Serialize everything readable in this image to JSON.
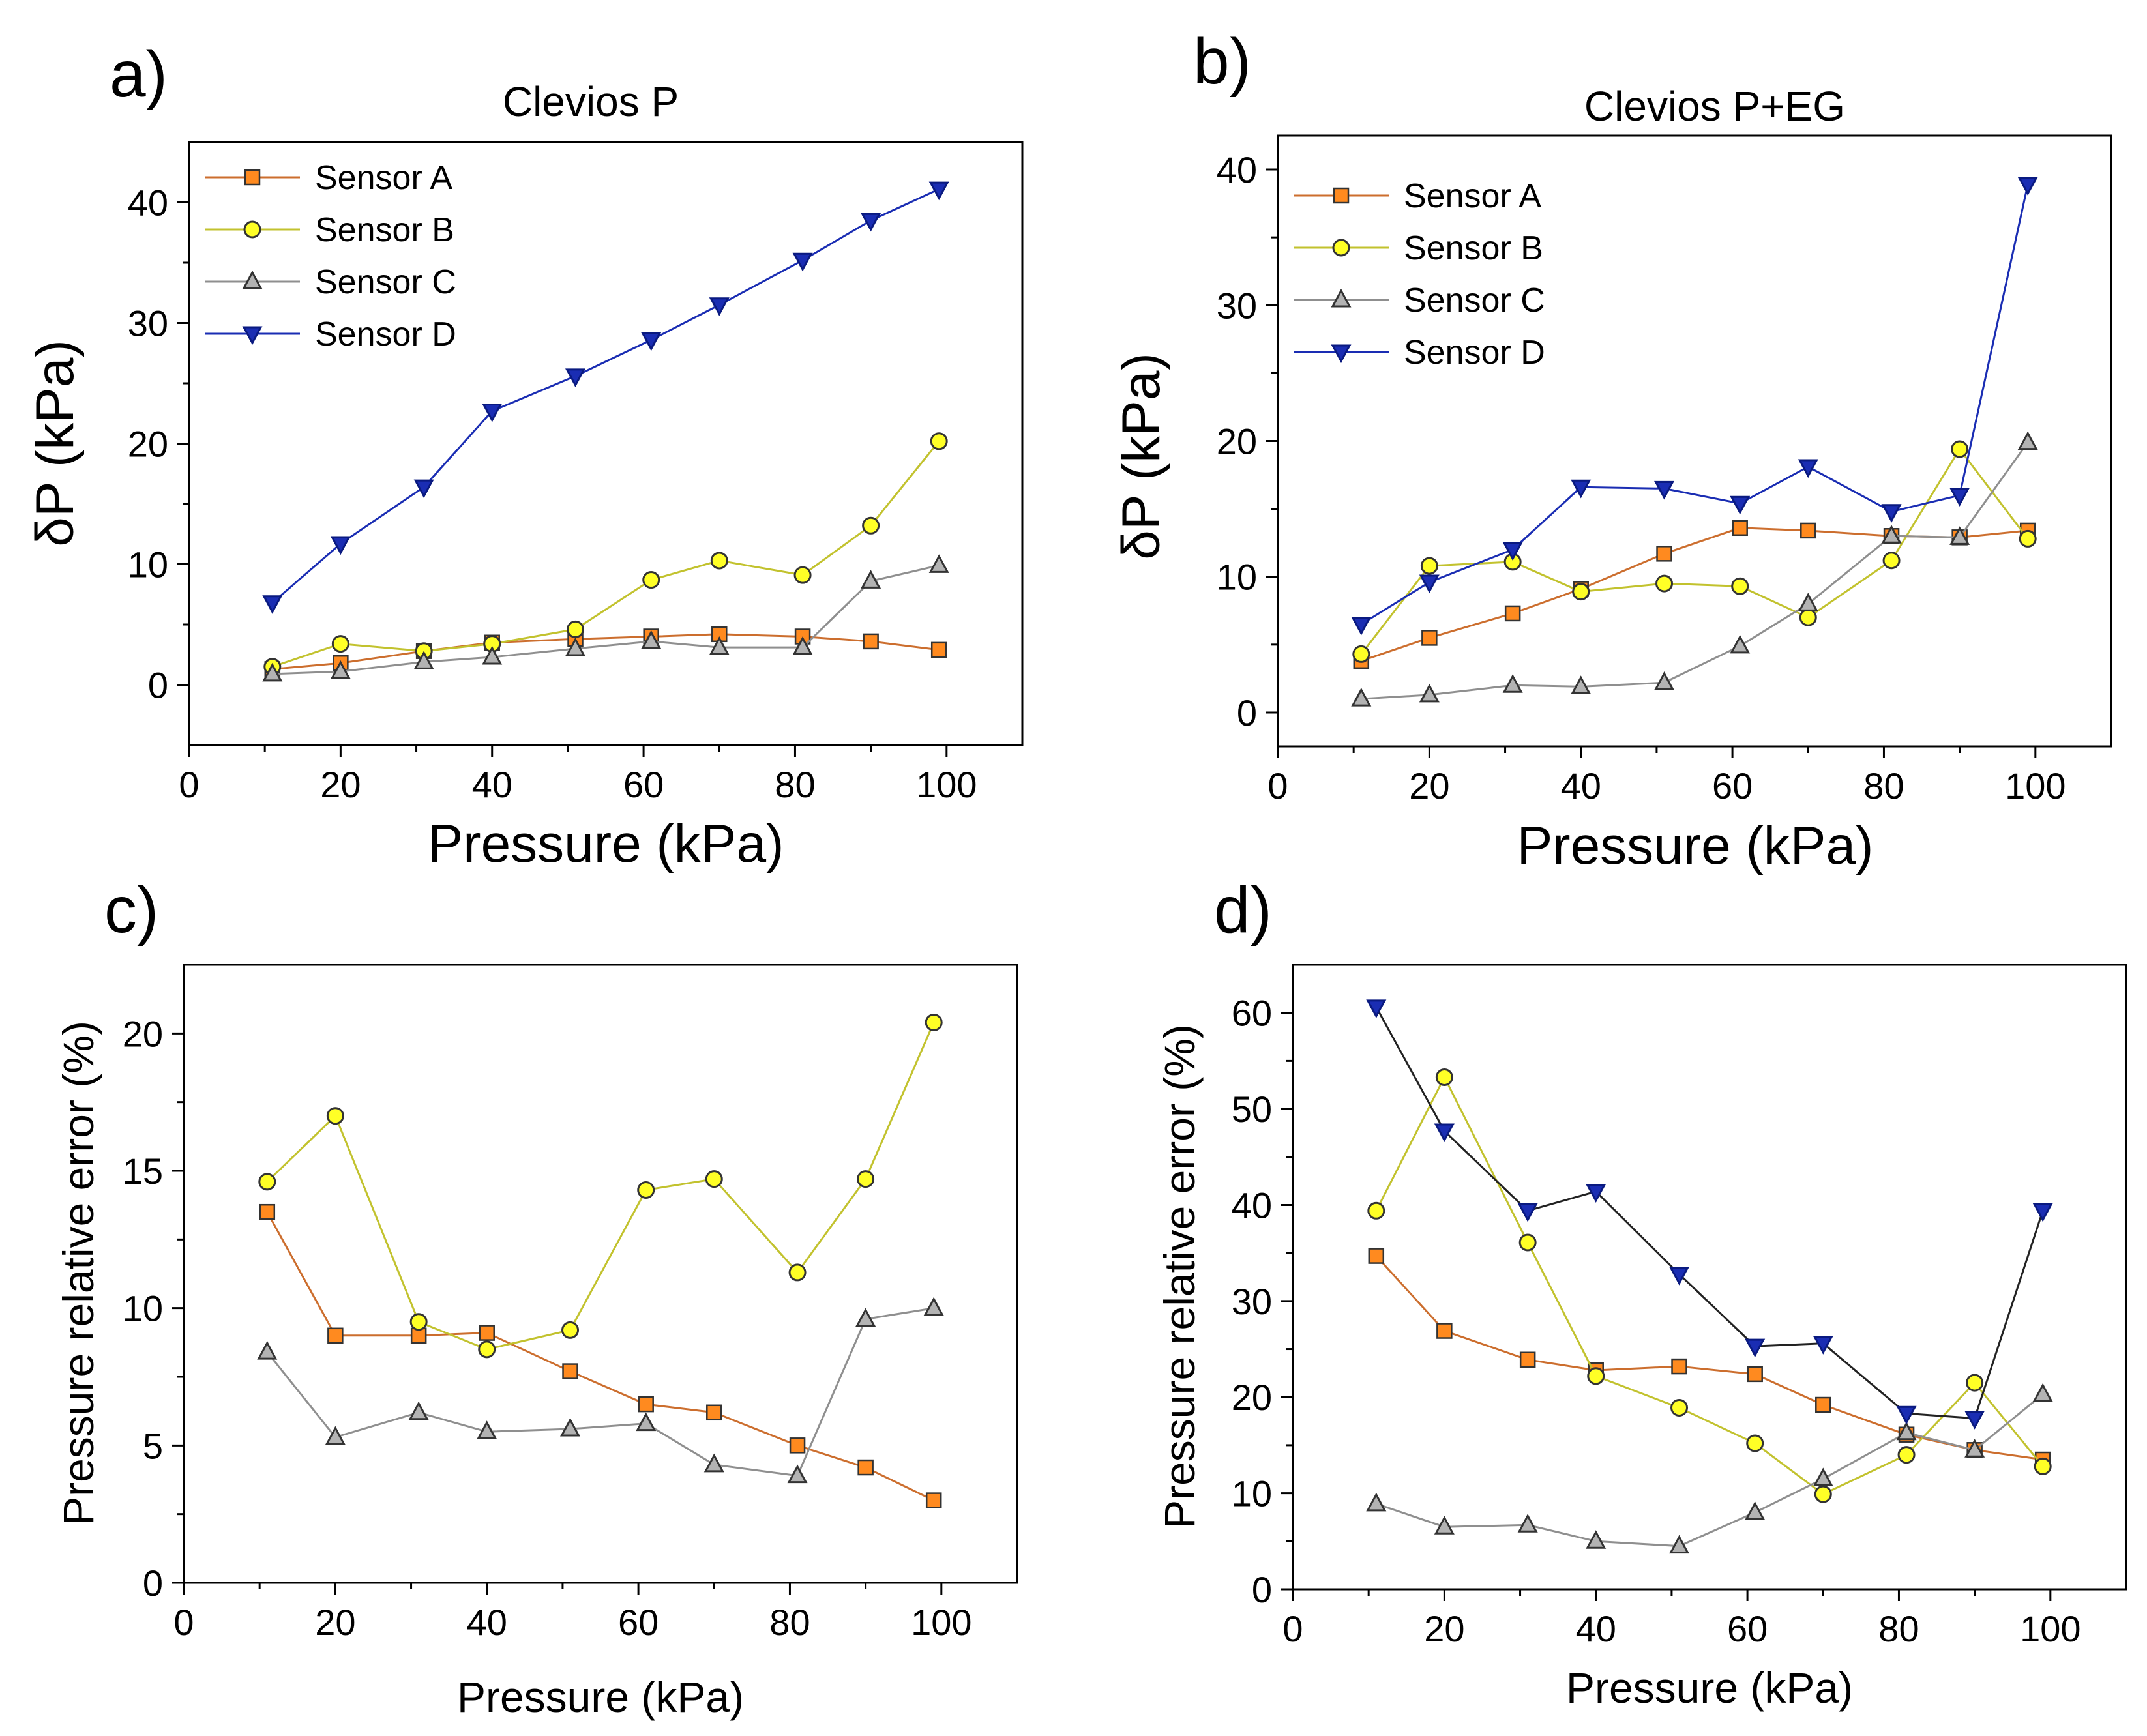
{
  "figure": {
    "panel_labels": [
      "a)",
      "b)",
      "c)",
      "d)"
    ]
  },
  "chart_data": [
    {
      "id": "a",
      "type": "line",
      "title": "Clevios P",
      "xlabel": "Pressure (kPa)",
      "ylabel": "δP (kPa)",
      "xlim": [
        0,
        110
      ],
      "ylim": [
        -5,
        45
      ],
      "xticks": [
        0,
        20,
        40,
        60,
        80,
        100
      ],
      "yticks": [
        0,
        10,
        20,
        30,
        40
      ],
      "legend": "top-left",
      "series": [
        {
          "name": "Sensor A",
          "color": "#cc6e2e",
          "marker": "square",
          "marker_fill": "#ff8a1f",
          "x": [
            11,
            20,
            31,
            40,
            51,
            61,
            70,
            81,
            90,
            99
          ],
          "y": [
            1.3,
            1.8,
            2.8,
            3.5,
            3.8,
            4.0,
            4.2,
            4.0,
            3.6,
            2.9
          ]
        },
        {
          "name": "Sensor B",
          "color": "#c2c22e",
          "marker": "circle",
          "marker_fill": "#ffff26",
          "x": [
            11,
            20,
            31,
            40,
            51,
            61,
            70,
            81,
            90,
            99
          ],
          "y": [
            1.5,
            3.4,
            2.8,
            3.4,
            4.6,
            8.7,
            10.3,
            9.1,
            13.2,
            20.2
          ]
        },
        {
          "name": "Sensor C",
          "color": "#8f8f8f",
          "marker": "triangle-up",
          "marker_fill": "#b3b3b3",
          "x": [
            11,
            20,
            31,
            40,
            51,
            61,
            70,
            81,
            90,
            99
          ],
          "y": [
            0.9,
            1.1,
            1.9,
            2.3,
            3.0,
            3.6,
            3.1,
            3.1,
            8.6,
            9.9
          ]
        },
        {
          "name": "Sensor D",
          "color": "#1a2db3",
          "marker": "triangle-down",
          "marker_fill": "#1a2db3",
          "x": [
            11,
            20,
            31,
            40,
            51,
            61,
            70,
            81,
            90,
            99
          ],
          "y": [
            6.8,
            11.7,
            16.4,
            22.7,
            25.6,
            28.6,
            31.5,
            35.2,
            38.5,
            41.1
          ]
        }
      ]
    },
    {
      "id": "b",
      "type": "line",
      "title": "Clevios P+EG",
      "xlabel": "Pressure (kPa)",
      "ylabel": "δP (kPa)",
      "xlim": [
        0,
        110
      ],
      "ylim": [
        -2.5,
        42.5
      ],
      "xticks": [
        0,
        20,
        40,
        60,
        80,
        100
      ],
      "yticks": [
        0,
        10,
        20,
        30,
        40
      ],
      "legend": "top-left",
      "series": [
        {
          "name": "Sensor A",
          "color": "#cc6e2e",
          "marker": "square",
          "marker_fill": "#ff8a1f",
          "x": [
            11,
            20,
            31,
            40,
            51,
            61,
            70,
            81,
            90,
            99
          ],
          "y": [
            3.8,
            5.5,
            7.3,
            9.1,
            11.7,
            13.6,
            13.4,
            13.0,
            12.9,
            13.4
          ]
        },
        {
          "name": "Sensor B",
          "color": "#c2c22e",
          "marker": "circle",
          "marker_fill": "#ffff26",
          "x": [
            11,
            20,
            31,
            40,
            51,
            61,
            70,
            81,
            90,
            99
          ],
          "y": [
            4.3,
            10.8,
            11.1,
            8.9,
            9.5,
            9.3,
            7.0,
            11.2,
            19.4,
            12.8
          ]
        },
        {
          "name": "Sensor C",
          "color": "#8f8f8f",
          "marker": "triangle-up",
          "marker_fill": "#b3b3b3",
          "x": [
            11,
            20,
            31,
            40,
            51,
            61,
            70,
            81,
            90,
            99
          ],
          "y": [
            1.0,
            1.3,
            2.0,
            1.9,
            2.2,
            4.9,
            8.0,
            13.0,
            12.9,
            19.9
          ]
        },
        {
          "name": "Sensor D",
          "color": "#1a2db3",
          "marker": "triangle-down",
          "marker_fill": "#1a2db3",
          "x": [
            11,
            20,
            31,
            40,
            51,
            61,
            70,
            81,
            90,
            99
          ],
          "y": [
            6.5,
            9.6,
            12.0,
            16.6,
            16.5,
            15.4,
            18.1,
            14.8,
            16.0,
            38.9
          ]
        }
      ]
    },
    {
      "id": "c",
      "type": "line",
      "title": "",
      "xlabel": "Pressure (kPa)",
      "ylabel": "Pressure relative error (%)",
      "xlim": [
        0,
        110
      ],
      "ylim": [
        0,
        22.5
      ],
      "xticks": [
        0,
        20,
        40,
        60,
        80,
        100
      ],
      "yticks": [
        0,
        5,
        10,
        15,
        20
      ],
      "legend": "none",
      "series": [
        {
          "name": "Sensor A",
          "color": "#cc6e2e",
          "marker": "square",
          "marker_fill": "#ff8a1f",
          "x": [
            11,
            20,
            31,
            40,
            51,
            61,
            70,
            81,
            90,
            99
          ],
          "y": [
            13.5,
            9.0,
            9.0,
            9.1,
            7.7,
            6.5,
            6.2,
            5.0,
            4.2,
            3.0
          ]
        },
        {
          "name": "Sensor B",
          "color": "#c2c22e",
          "marker": "circle",
          "marker_fill": "#ffff26",
          "x": [
            11,
            20,
            31,
            40,
            51,
            61,
            70,
            81,
            90,
            99
          ],
          "y": [
            14.6,
            17.0,
            9.5,
            8.5,
            9.2,
            14.3,
            14.7,
            11.3,
            14.7,
            20.4
          ]
        },
        {
          "name": "Sensor C",
          "color": "#8f8f8f",
          "marker": "triangle-up",
          "marker_fill": "#b3b3b3",
          "x": [
            11,
            20,
            31,
            40,
            51,
            61,
            70,
            81,
            90,
            99
          ],
          "y": [
            8.4,
            5.3,
            6.2,
            5.5,
            5.6,
            5.8,
            4.3,
            3.9,
            9.6,
            10.0
          ]
        }
      ]
    },
    {
      "id": "d",
      "type": "line",
      "title": "",
      "xlabel": "Pressure (kPa)",
      "ylabel": "Pressure relative error (%)",
      "xlim": [
        0,
        110
      ],
      "ylim": [
        0,
        65
      ],
      "xticks": [
        0,
        20,
        40,
        60,
        80,
        100
      ],
      "yticks": [
        0,
        10,
        20,
        30,
        40,
        50,
        60
      ],
      "legend": "none",
      "series": [
        {
          "name": "Sensor A",
          "color": "#cc6e2e",
          "marker": "square",
          "marker_fill": "#ff8a1f",
          "x": [
            11,
            20,
            31,
            40,
            51,
            61,
            70,
            81,
            90,
            99
          ],
          "y": [
            34.7,
            26.9,
            23.9,
            22.8,
            23.2,
            22.4,
            19.2,
            16.1,
            14.5,
            13.5
          ]
        },
        {
          "name": "Sensor B",
          "color": "#c2c22e",
          "marker": "circle",
          "marker_fill": "#ffff26",
          "x": [
            11,
            20,
            31,
            40,
            51,
            61,
            70,
            81,
            90,
            99
          ],
          "y": [
            39.4,
            53.3,
            36.1,
            22.2,
            18.9,
            15.2,
            9.9,
            14.0,
            21.5,
            12.8
          ]
        },
        {
          "name": "Sensor C",
          "color": "#8f8f8f",
          "marker": "triangle-up",
          "marker_fill": "#b3b3b3",
          "x": [
            11,
            20,
            31,
            40,
            51,
            61,
            70,
            81,
            90,
            99
          ],
          "y": [
            8.9,
            6.5,
            6.7,
            5.0,
            4.5,
            8.0,
            11.5,
            16.3,
            14.5,
            20.3
          ]
        },
        {
          "name": "Sensor D",
          "color": "#1a2db3",
          "marker": "triangle-down",
          "marker_fill": "#1a2db3",
          "line_color": "#222222",
          "x": [
            11,
            20,
            31,
            40,
            51,
            61,
            70,
            81,
            90,
            99
          ],
          "y": [
            60.6,
            47.7,
            39.4,
            41.4,
            32.8,
            25.3,
            25.6,
            18.3,
            17.8,
            39.4
          ]
        }
      ]
    }
  ]
}
